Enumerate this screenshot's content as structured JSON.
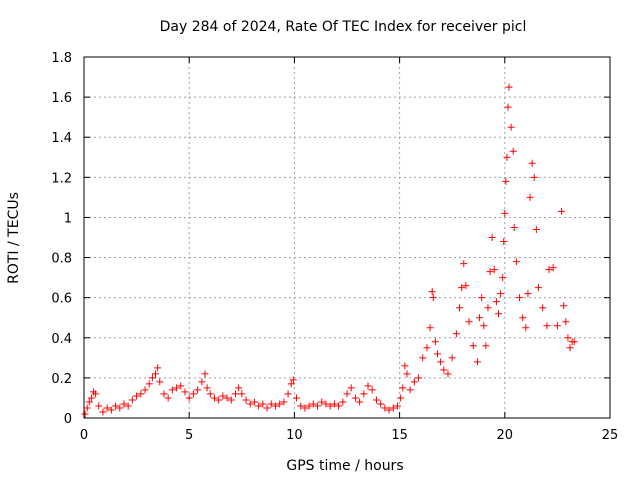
{
  "chart_data": {
    "type": "scatter",
    "title": "Day 284 of 2024, Rate Of TEC Index for receiver picl",
    "xlabel": "GPS time / hours",
    "ylabel": "ROTI / TECUs",
    "xlim": [
      0,
      25
    ],
    "ylim": [
      0,
      1.8
    ],
    "xticks": [
      0,
      5,
      10,
      15,
      20,
      25
    ],
    "xtick_labels": [
      "0",
      "5",
      "10",
      "15",
      "20",
      "25"
    ],
    "yticks": [
      0,
      0.2,
      0.4,
      0.6,
      0.8,
      1,
      1.2,
      1.4,
      1.6,
      1.8
    ],
    "ytick_labels": [
      "0",
      "0.2",
      "0.4",
      "0.6",
      "0.8",
      "1",
      "1.2",
      "1.4",
      "1.6",
      "1.8"
    ],
    "grid": true,
    "marker": "+",
    "marker_color": "#ff0000",
    "series": [
      {
        "name": "ROTI",
        "points": [
          [
            0.05,
            0.02
          ],
          [
            0.15,
            0.05
          ],
          [
            0.25,
            0.08
          ],
          [
            0.35,
            0.1
          ],
          [
            0.45,
            0.13
          ],
          [
            0.55,
            0.12
          ],
          [
            0.7,
            0.06
          ],
          [
            0.9,
            0.03
          ],
          [
            1.1,
            0.05
          ],
          [
            1.3,
            0.04
          ],
          [
            1.5,
            0.06
          ],
          [
            1.7,
            0.05
          ],
          [
            1.9,
            0.07
          ],
          [
            2.1,
            0.06
          ],
          [
            2.3,
            0.09
          ],
          [
            2.5,
            0.11
          ],
          [
            2.7,
            0.12
          ],
          [
            2.9,
            0.14
          ],
          [
            3.1,
            0.17
          ],
          [
            3.25,
            0.2
          ],
          [
            3.4,
            0.22
          ],
          [
            3.5,
            0.25
          ],
          [
            3.6,
            0.18
          ],
          [
            3.8,
            0.12
          ],
          [
            4.0,
            0.1
          ],
          [
            4.2,
            0.14
          ],
          [
            4.4,
            0.15
          ],
          [
            4.6,
            0.16
          ],
          [
            4.8,
            0.13
          ],
          [
            5.0,
            0.1
          ],
          [
            5.2,
            0.12
          ],
          [
            5.4,
            0.14
          ],
          [
            5.6,
            0.18
          ],
          [
            5.75,
            0.22
          ],
          [
            5.85,
            0.15
          ],
          [
            6.0,
            0.12
          ],
          [
            6.2,
            0.1
          ],
          [
            6.4,
            0.09
          ],
          [
            6.6,
            0.11
          ],
          [
            6.8,
            0.1
          ],
          [
            7.0,
            0.09
          ],
          [
            7.2,
            0.12
          ],
          [
            7.35,
            0.15
          ],
          [
            7.5,
            0.12
          ],
          [
            7.7,
            0.09
          ],
          [
            7.9,
            0.07
          ],
          [
            8.1,
            0.08
          ],
          [
            8.3,
            0.06
          ],
          [
            8.5,
            0.07
          ],
          [
            8.7,
            0.05
          ],
          [
            8.9,
            0.07
          ],
          [
            9.1,
            0.06
          ],
          [
            9.3,
            0.07
          ],
          [
            9.5,
            0.08
          ],
          [
            9.7,
            0.12
          ],
          [
            9.85,
            0.17
          ],
          [
            9.95,
            0.19
          ],
          [
            10.1,
            0.1
          ],
          [
            10.3,
            0.06
          ],
          [
            10.5,
            0.05
          ],
          [
            10.7,
            0.06
          ],
          [
            10.9,
            0.07
          ],
          [
            11.1,
            0.06
          ],
          [
            11.3,
            0.08
          ],
          [
            11.5,
            0.07
          ],
          [
            11.7,
            0.06
          ],
          [
            11.9,
            0.07
          ],
          [
            12.1,
            0.06
          ],
          [
            12.3,
            0.08
          ],
          [
            12.5,
            0.12
          ],
          [
            12.7,
            0.15
          ],
          [
            12.9,
            0.1
          ],
          [
            13.1,
            0.08
          ],
          [
            13.3,
            0.12
          ],
          [
            13.5,
            0.16
          ],
          [
            13.7,
            0.14
          ],
          [
            13.9,
            0.09
          ],
          [
            14.1,
            0.07
          ],
          [
            14.3,
            0.05
          ],
          [
            14.5,
            0.04
          ],
          [
            14.7,
            0.05
          ],
          [
            14.9,
            0.06
          ],
          [
            15.05,
            0.1
          ],
          [
            15.15,
            0.15
          ],
          [
            15.25,
            0.26
          ],
          [
            15.35,
            0.22
          ],
          [
            15.5,
            0.14
          ],
          [
            15.7,
            0.18
          ],
          [
            15.9,
            0.2
          ],
          [
            16.1,
            0.3
          ],
          [
            16.3,
            0.35
          ],
          [
            16.45,
            0.45
          ],
          [
            16.55,
            0.63
          ],
          [
            16.6,
            0.6
          ],
          [
            16.7,
            0.38
          ],
          [
            16.8,
            0.32
          ],
          [
            16.95,
            0.28
          ],
          [
            17.1,
            0.24
          ],
          [
            17.3,
            0.22
          ],
          [
            17.5,
            0.3
          ],
          [
            17.7,
            0.42
          ],
          [
            17.85,
            0.55
          ],
          [
            17.95,
            0.65
          ],
          [
            18.05,
            0.77
          ],
          [
            18.15,
            0.66
          ],
          [
            18.3,
            0.48
          ],
          [
            18.5,
            0.36
          ],
          [
            18.7,
            0.28
          ],
          [
            18.8,
            0.5
          ],
          [
            18.9,
            0.6
          ],
          [
            19.0,
            0.46
          ],
          [
            19.1,
            0.36
          ],
          [
            19.2,
            0.55
          ],
          [
            19.3,
            0.73
          ],
          [
            19.4,
            0.9
          ],
          [
            19.5,
            0.74
          ],
          [
            19.6,
            0.58
          ],
          [
            19.7,
            0.52
          ],
          [
            19.8,
            0.62
          ],
          [
            19.9,
            0.7
          ],
          [
            19.95,
            0.88
          ],
          [
            20.0,
            1.02
          ],
          [
            20.05,
            1.18
          ],
          [
            20.1,
            1.3
          ],
          [
            20.15,
            1.55
          ],
          [
            20.2,
            1.65
          ],
          [
            20.3,
            1.45
          ],
          [
            20.4,
            1.33
          ],
          [
            20.45,
            0.95
          ],
          [
            20.55,
            0.78
          ],
          [
            20.7,
            0.6
          ],
          [
            20.85,
            0.5
          ],
          [
            21.0,
            0.45
          ],
          [
            21.1,
            0.62
          ],
          [
            21.2,
            1.1
          ],
          [
            21.3,
            1.27
          ],
          [
            21.4,
            1.2
          ],
          [
            21.5,
            0.94
          ],
          [
            21.6,
            0.65
          ],
          [
            21.8,
            0.55
          ],
          [
            22.0,
            0.46
          ],
          [
            22.1,
            0.74
          ],
          [
            22.3,
            0.75
          ],
          [
            22.5,
            0.46
          ],
          [
            22.7,
            1.03
          ],
          [
            22.8,
            0.56
          ],
          [
            22.9,
            0.48
          ],
          [
            23.0,
            0.4
          ],
          [
            23.1,
            0.35
          ],
          [
            23.2,
            0.38
          ],
          [
            23.3,
            0.38
          ]
        ]
      }
    ]
  }
}
